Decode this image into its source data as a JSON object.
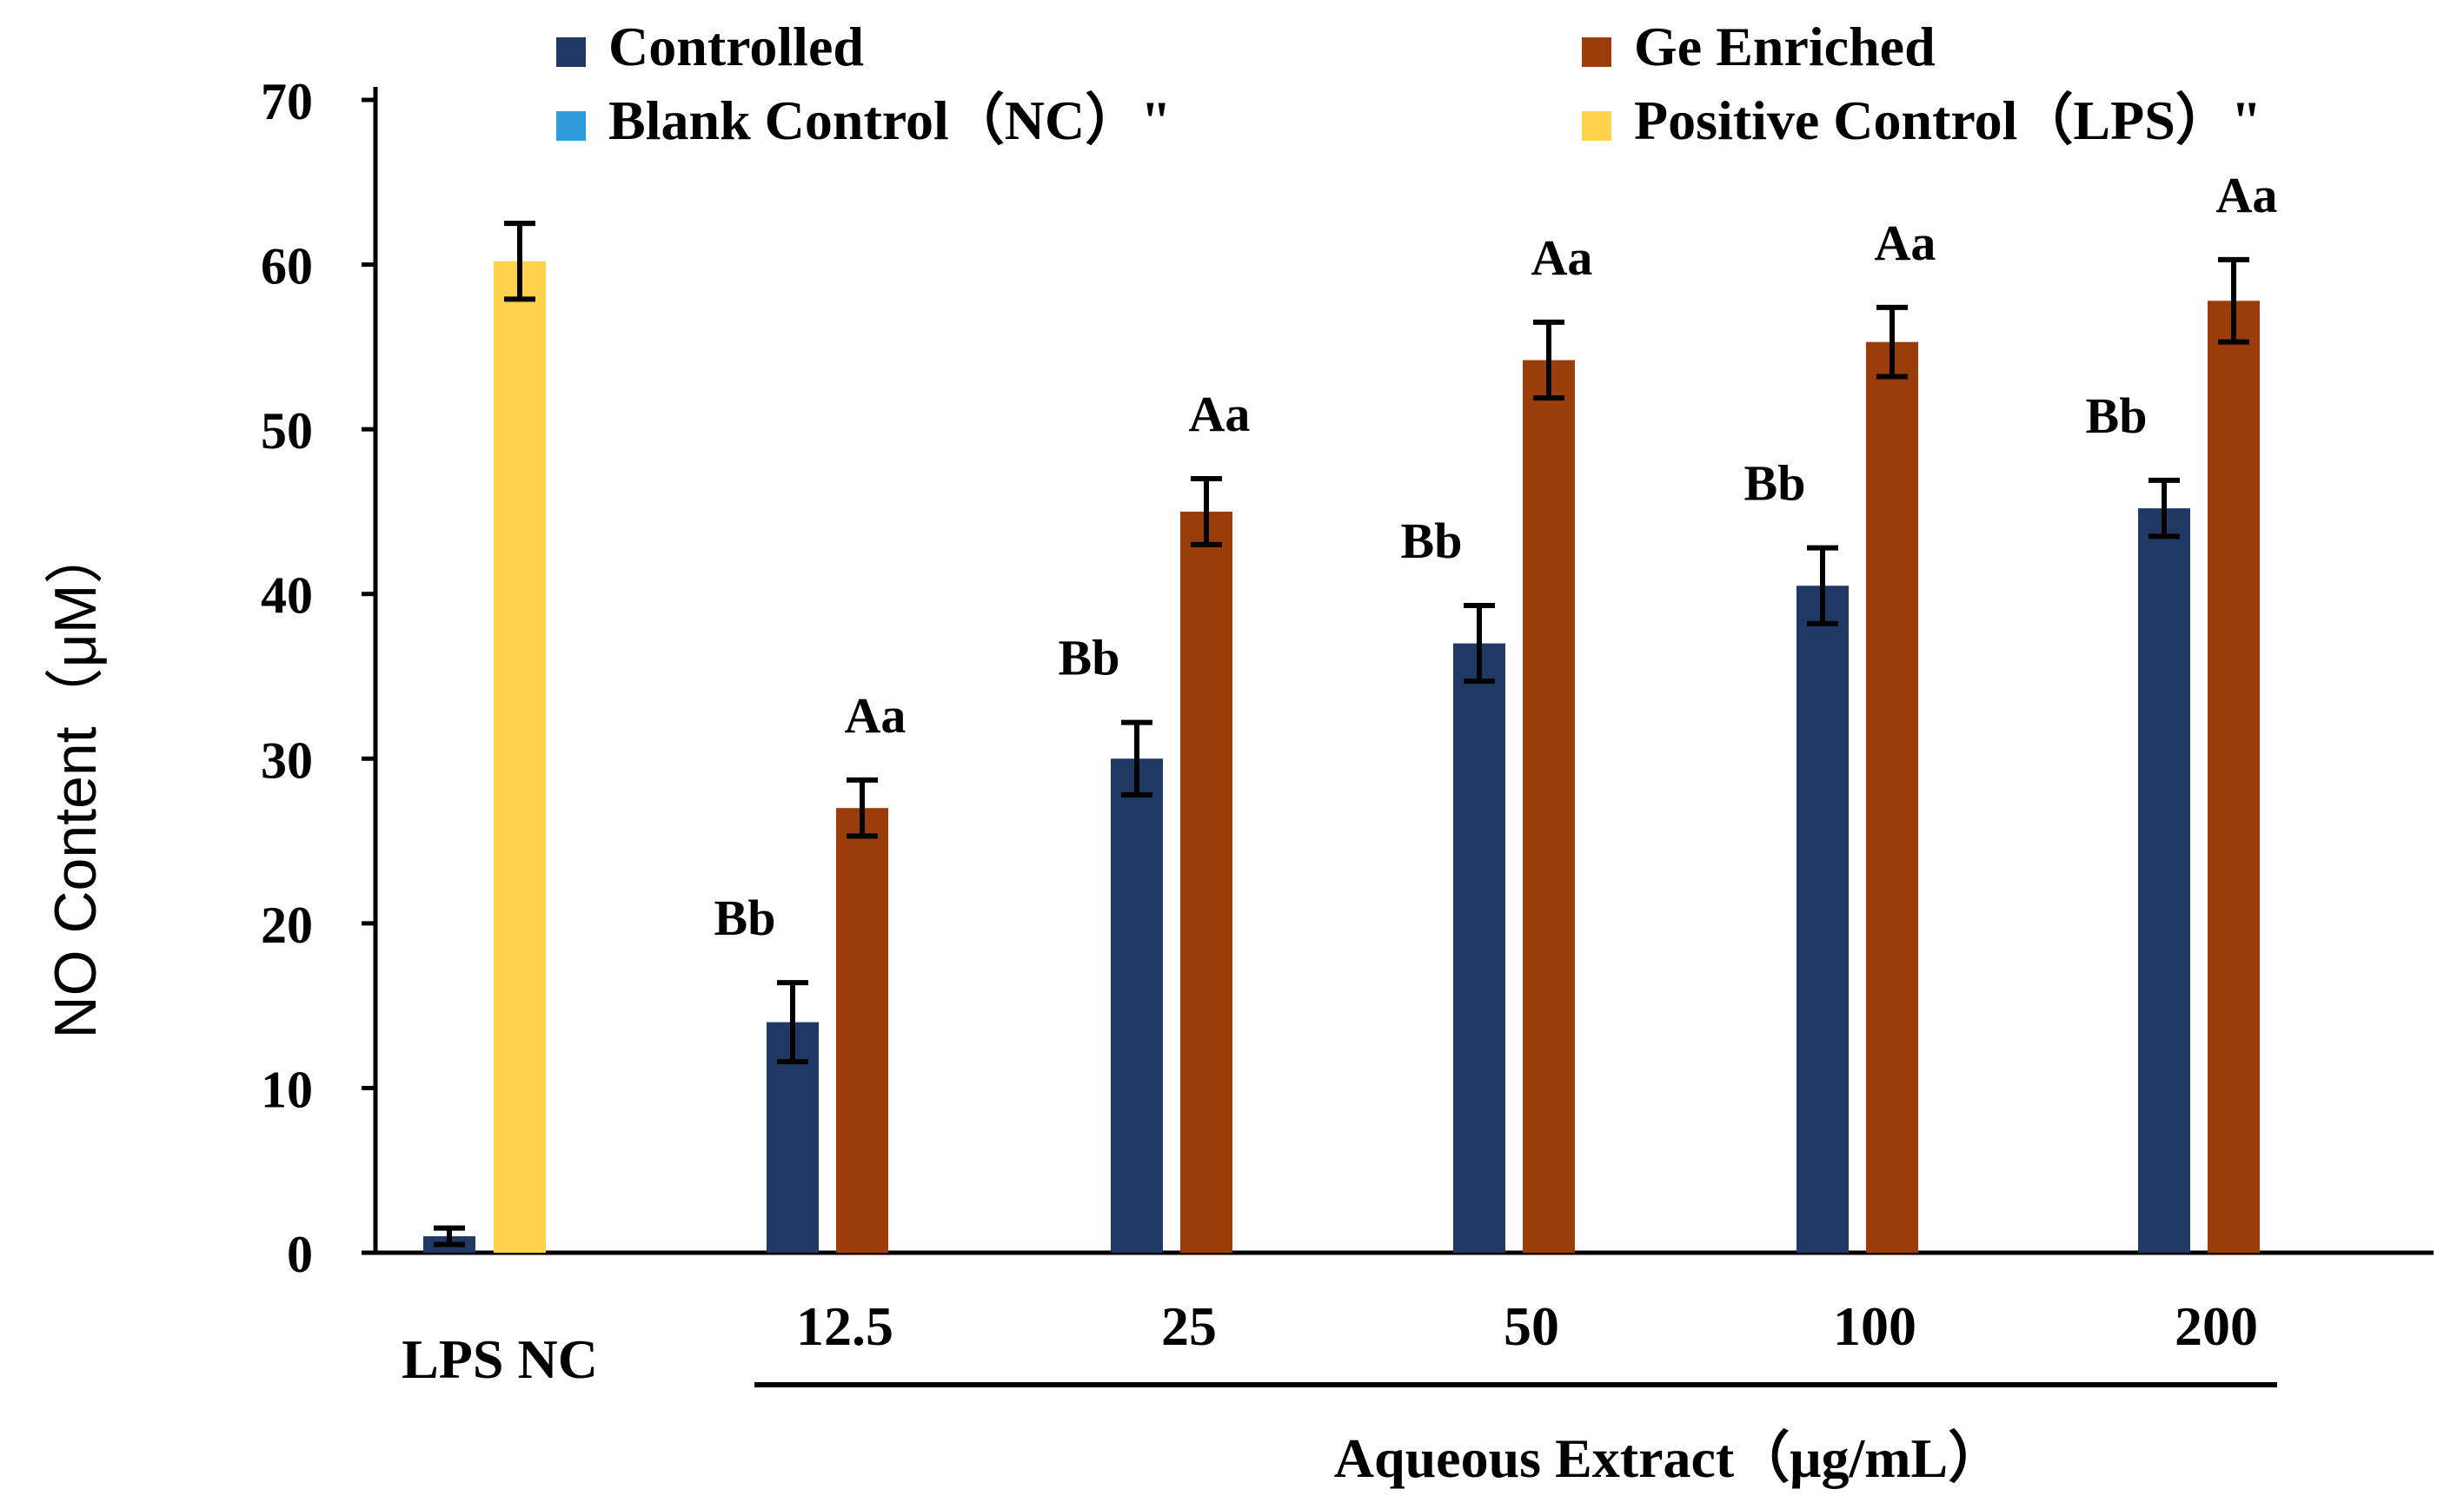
{
  "chart_data": {
    "type": "bar",
    "ylabel": "NO Content（μM）",
    "xlabel": "Aqueous Extract（μg/mL）",
    "ylim": [
      0,
      70
    ],
    "yticks": [
      0,
      10,
      20,
      30,
      40,
      50,
      60,
      70
    ],
    "grid": false,
    "legend_position": "top",
    "legend": [
      {
        "label": "Controlled",
        "color": "#1f3864"
      },
      {
        "label": "Ge Enriched",
        "color": "#9b3d0b"
      },
      {
        "label": "Blank Control（NC）\"",
        "color": "#2e9bd6"
      },
      {
        "label": "Positive Control（LPS）\"",
        "color": "#ffd24d"
      }
    ],
    "control_label": "LPS NC",
    "controls": [
      {
        "name": "Blank Control (NC)",
        "value": 1.0,
        "error": 0.5,
        "color": "#1f3864"
      },
      {
        "name": "Positive Control (LPS)",
        "value": 60.2,
        "error": 2.3,
        "color": "#ffd24d"
      }
    ],
    "categories": [
      "12.5",
      "25",
      "50",
      "100",
      "200"
    ],
    "series": [
      {
        "name": "Controlled",
        "color": "#1f3864",
        "values": [
          14.0,
          30.0,
          37.0,
          40.5,
          45.2
        ],
        "errors": [
          2.4,
          2.2,
          2.3,
          2.3,
          1.7
        ],
        "labels": [
          "Bb",
          "Bb",
          "Bb",
          "Bb",
          "Bb"
        ]
      },
      {
        "name": "Ge Enriched",
        "color": "#9b3d0b",
        "values": [
          27.0,
          45.0,
          54.2,
          55.3,
          57.8
        ],
        "errors": [
          1.7,
          2.0,
          2.3,
          2.1,
          2.5
        ],
        "labels": [
          "Aa",
          "Aa",
          "Aa",
          "Aa",
          "Aa"
        ]
      }
    ]
  }
}
